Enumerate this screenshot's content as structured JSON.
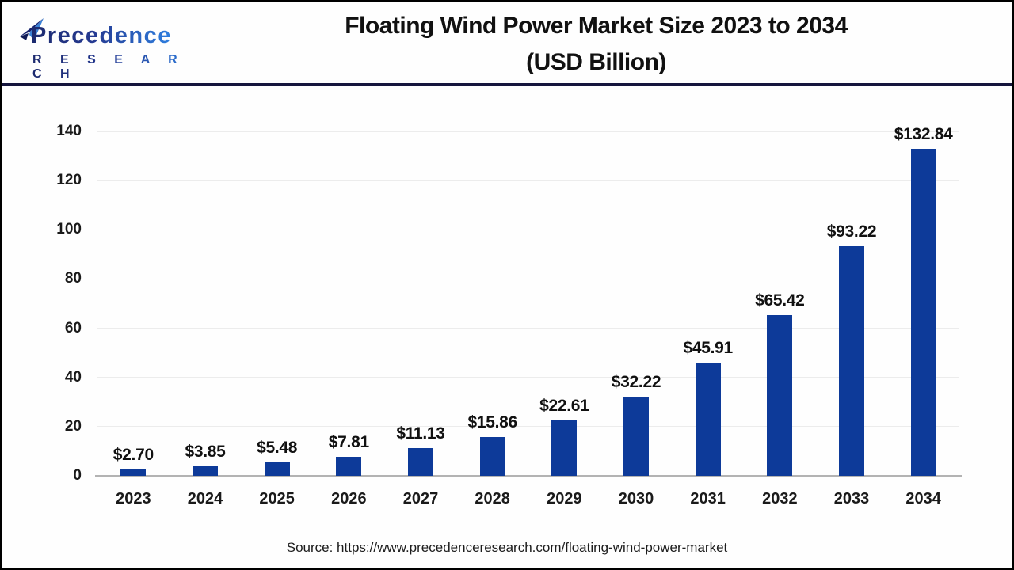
{
  "header": {
    "logo": {
      "line1": "Precedence",
      "line2": "R E S E A R C H"
    },
    "title_line1": "Floating Wind Power Market Size 2023 to 2034",
    "title_line2": "(USD Billion)"
  },
  "chart_data": {
    "type": "bar",
    "title": "Floating Wind Power Market Size 2023 to 2034 (USD Billion)",
    "categories": [
      "2023",
      "2024",
      "2025",
      "2026",
      "2027",
      "2028",
      "2029",
      "2030",
      "2031",
      "2032",
      "2033",
      "2034"
    ],
    "values": [
      2.7,
      3.85,
      5.48,
      7.81,
      11.13,
      15.86,
      22.61,
      32.22,
      45.91,
      65.42,
      93.22,
      132.84
    ],
    "value_labels": [
      "$2.70",
      "$3.85",
      "$5.48",
      "$7.81",
      "$11.13",
      "$15.86",
      "$22.61",
      "$32.22",
      "$45.91",
      "$65.42",
      "$93.22",
      "$132.84"
    ],
    "xlabel": "",
    "ylabel": "",
    "ylim": [
      0,
      140
    ],
    "yticks": [
      0,
      20,
      40,
      60,
      80,
      100,
      120,
      140
    ],
    "grid": true,
    "legend": false,
    "bar_color": "#0d3a99",
    "gridline_color": "#ececec",
    "baseline_color": "#b3b3b3"
  },
  "footer": {
    "source": "Source: https://www.precedenceresearch.com/floating-wind-power-market"
  },
  "colors": {
    "logo_dark": "#1c2a6e",
    "logo_light": "#2e7fe0",
    "header_rule": "#15153d",
    "page_border": "#000000"
  }
}
